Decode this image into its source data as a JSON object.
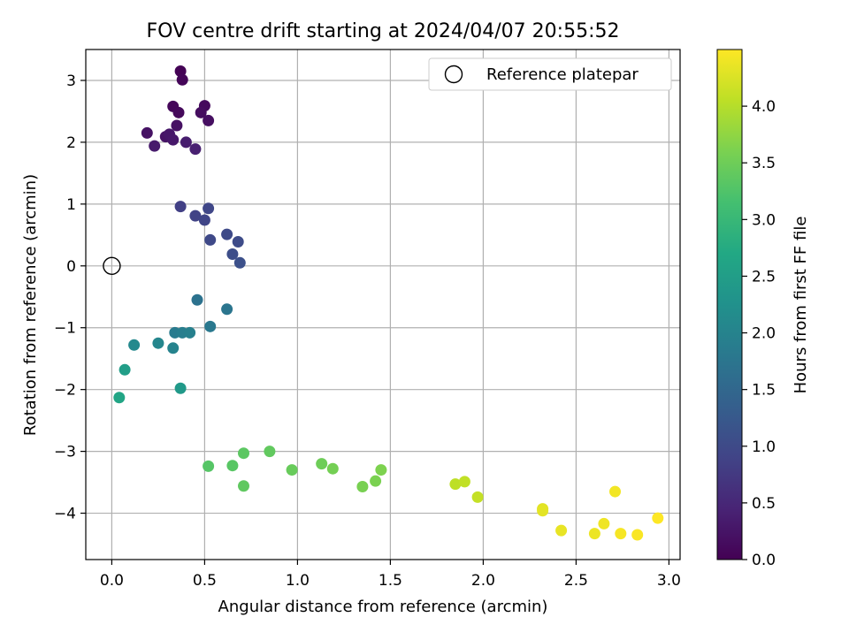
{
  "chart_data": {
    "type": "scatter",
    "title": "FOV centre drift starting at 2024/04/07 20:55:52",
    "xlabel": "Angular distance from reference (arcmin)",
    "ylabel": "Rotation from reference (arcmin)",
    "xlim": [
      -0.14,
      3.06
    ],
    "ylim": [
      -4.75,
      3.5
    ],
    "xticks": [
      0.0,
      0.5,
      1.0,
      1.5,
      2.0,
      2.5,
      3.0
    ],
    "xtick_labels": [
      "0.0",
      "0.5",
      "1.0",
      "1.5",
      "2.0",
      "2.5",
      "3.0"
    ],
    "yticks": [
      -4,
      -3,
      -2,
      -1,
      0,
      1,
      2,
      3
    ],
    "ytick_labels": [
      "−4",
      "−3",
      "−2",
      "−1",
      "0",
      "1",
      "2",
      "3"
    ],
    "grid": true,
    "colormap": "viridis",
    "colorbar": {
      "label": "Hours from first FF file",
      "range": [
        0.0,
        4.5
      ],
      "ticks": [
        0.0,
        0.5,
        1.0,
        1.5,
        2.0,
        2.5,
        3.0,
        3.5,
        4.0
      ],
      "tick_labels": [
        "0.0",
        "0.5",
        "1.0",
        "1.5",
        "2.0",
        "2.5",
        "3.0",
        "3.5",
        "4.0"
      ]
    },
    "legend": {
      "placement": "top-right",
      "entries": [
        {
          "label": "Reference platepar",
          "marker": "open-circle"
        }
      ]
    },
    "reference_point": {
      "x": 0.0,
      "y": 0.0
    },
    "points": [
      {
        "x": 0.37,
        "y": 3.15,
        "c": 0.02
      },
      {
        "x": 0.38,
        "y": 3.01,
        "c": 0.05
      },
      {
        "x": 0.33,
        "y": 2.58,
        "c": 0.08
      },
      {
        "x": 0.36,
        "y": 2.48,
        "c": 0.1
      },
      {
        "x": 0.5,
        "y": 2.59,
        "c": 0.12
      },
      {
        "x": 0.48,
        "y": 2.48,
        "c": 0.15
      },
      {
        "x": 0.52,
        "y": 2.35,
        "c": 0.18
      },
      {
        "x": 0.35,
        "y": 2.27,
        "c": 0.2
      },
      {
        "x": 0.19,
        "y": 2.15,
        "c": 0.22
      },
      {
        "x": 0.29,
        "y": 2.09,
        "c": 0.25
      },
      {
        "x": 0.31,
        "y": 2.13,
        "c": 0.28
      },
      {
        "x": 0.33,
        "y": 2.04,
        "c": 0.3
      },
      {
        "x": 0.23,
        "y": 1.94,
        "c": 0.33
      },
      {
        "x": 0.4,
        "y": 2.0,
        "c": 0.36
      },
      {
        "x": 0.45,
        "y": 1.89,
        "c": 0.4
      },
      {
        "x": 0.37,
        "y": 0.96,
        "c": 0.85
      },
      {
        "x": 0.45,
        "y": 0.81,
        "c": 0.88
      },
      {
        "x": 0.5,
        "y": 0.74,
        "c": 0.92
      },
      {
        "x": 0.52,
        "y": 0.93,
        "c": 0.95
      },
      {
        "x": 0.53,
        "y": 0.42,
        "c": 0.98
      },
      {
        "x": 0.62,
        "y": 0.51,
        "c": 1.0
      },
      {
        "x": 0.68,
        "y": 0.39,
        "c": 1.03
      },
      {
        "x": 0.65,
        "y": 0.19,
        "c": 1.06
      },
      {
        "x": 0.69,
        "y": 0.05,
        "c": 1.1
      },
      {
        "x": 0.46,
        "y": -0.55,
        "c": 1.7
      },
      {
        "x": 0.62,
        "y": -0.7,
        "c": 1.75
      },
      {
        "x": 0.53,
        "y": -0.98,
        "c": 1.8
      },
      {
        "x": 0.34,
        "y": -1.08,
        "c": 1.85
      },
      {
        "x": 0.38,
        "y": -1.08,
        "c": 1.9
      },
      {
        "x": 0.42,
        "y": -1.08,
        "c": 1.95
      },
      {
        "x": 0.33,
        "y": -1.33,
        "c": 2.0
      },
      {
        "x": 0.25,
        "y": -1.25,
        "c": 2.05
      },
      {
        "x": 0.12,
        "y": -1.28,
        "c": 2.1
      },
      {
        "x": 0.37,
        "y": -1.98,
        "c": 2.4
      },
      {
        "x": 0.07,
        "y": -1.68,
        "c": 2.5
      },
      {
        "x": 0.04,
        "y": -2.13,
        "c": 2.65
      },
      {
        "x": 0.52,
        "y": -3.24,
        "c": 3.3
      },
      {
        "x": 0.65,
        "y": -3.23,
        "c": 3.32
      },
      {
        "x": 0.71,
        "y": -3.03,
        "c": 3.35
      },
      {
        "x": 0.71,
        "y": -3.56,
        "c": 3.38
      },
      {
        "x": 0.85,
        "y": -3.0,
        "c": 3.4
      },
      {
        "x": 0.97,
        "y": -3.3,
        "c": 3.45
      },
      {
        "x": 1.13,
        "y": -3.2,
        "c": 3.5
      },
      {
        "x": 1.19,
        "y": -3.28,
        "c": 3.55
      },
      {
        "x": 1.35,
        "y": -3.57,
        "c": 3.58
      },
      {
        "x": 1.42,
        "y": -3.48,
        "c": 3.6
      },
      {
        "x": 1.45,
        "y": -3.3,
        "c": 3.62
      },
      {
        "x": 1.85,
        "y": -3.53,
        "c": 4.05
      },
      {
        "x": 1.9,
        "y": -3.49,
        "c": 4.08
      },
      {
        "x": 1.97,
        "y": -3.74,
        "c": 4.1
      },
      {
        "x": 2.32,
        "y": -3.93,
        "c": 4.3
      },
      {
        "x": 2.32,
        "y": -3.96,
        "c": 4.32
      },
      {
        "x": 2.42,
        "y": -4.28,
        "c": 4.35
      },
      {
        "x": 2.6,
        "y": -4.33,
        "c": 4.38
      },
      {
        "x": 2.65,
        "y": -4.17,
        "c": 4.4
      },
      {
        "x": 2.71,
        "y": -3.65,
        "c": 4.42
      },
      {
        "x": 2.74,
        "y": -4.33,
        "c": 4.45
      },
      {
        "x": 2.83,
        "y": -4.35,
        "c": 4.47
      },
      {
        "x": 2.94,
        "y": -4.08,
        "c": 4.5
      }
    ]
  }
}
